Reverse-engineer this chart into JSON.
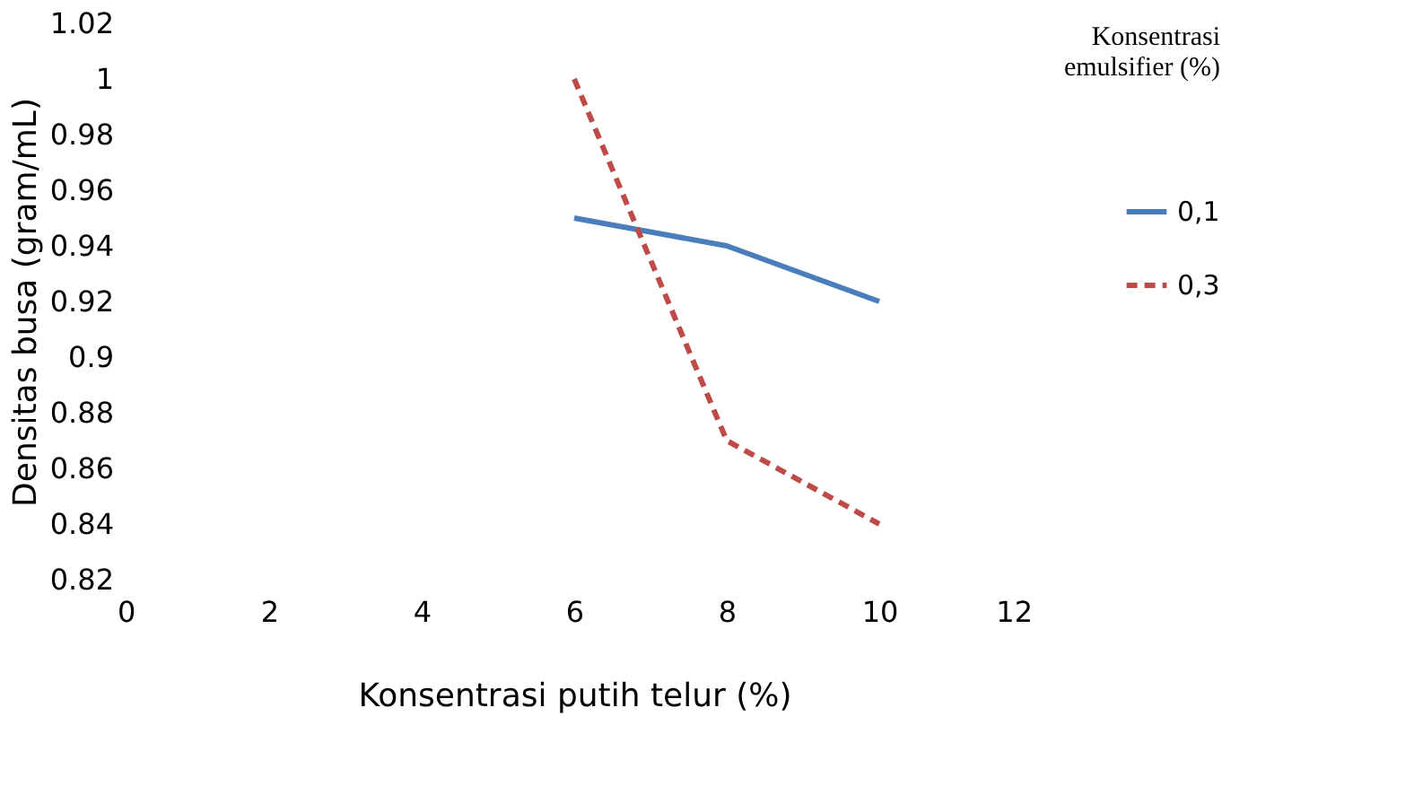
{
  "chart_data": {
    "type": "line",
    "xlabel": "Konsentrasi putih telur (%)",
    "ylabel": "Densitas busa (gram/mL)",
    "legend_title": "Konsentrasi emulsifier (%)",
    "x": [
      6,
      8,
      10
    ],
    "series": [
      {
        "name": "0,1",
        "color": "#4a7ebb",
        "values": [
          0.95,
          0.94,
          0.92
        ],
        "line_style": "solid"
      },
      {
        "name": "0,3",
        "color": "#be4b48",
        "values": [
          1.0,
          0.87,
          0.84
        ],
        "line_style": "dashed"
      }
    ],
    "xlim": [
      0,
      12
    ],
    "xticks": [
      0,
      2,
      4,
      6,
      8,
      10,
      12
    ],
    "ylim": [
      0.82,
      1.02
    ],
    "yticks": [
      0.82,
      0.84,
      0.86,
      0.88,
      0.9,
      0.92,
      0.94,
      0.96,
      0.98,
      1,
      1.02
    ],
    "grid": false,
    "legend": "right",
    "marker": "none"
  }
}
